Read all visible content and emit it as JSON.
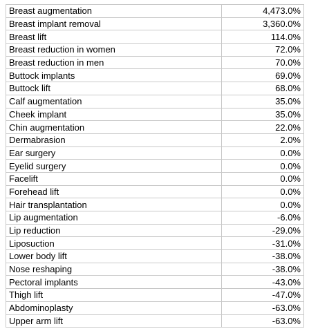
{
  "table": {
    "rows": [
      [
        "Breast augmentation",
        "4,473.0%"
      ],
      [
        "Breast implant removal",
        "3,360.0%"
      ],
      [
        "Breast lift",
        "114.0%"
      ],
      [
        "Breast reduction in women",
        "72.0%"
      ],
      [
        "Breast reduction in men",
        "70.0%"
      ],
      [
        "Buttock implants",
        "69.0%"
      ],
      [
        "Buttock lift",
        "68.0%"
      ],
      [
        "Calf augmentation",
        "35.0%"
      ],
      [
        "Cheek implant",
        "35.0%"
      ],
      [
        "Chin augmentation",
        "22.0%"
      ],
      [
        "Dermabrasion",
        "2.0%"
      ],
      [
        "Ear surgery",
        "0.0%"
      ],
      [
        "Eyelid surgery",
        "0.0%"
      ],
      [
        "Facelift",
        "0.0%"
      ],
      [
        "Forehead lift",
        "0.0%"
      ],
      [
        "Hair transplantation",
        "0.0%"
      ],
      [
        "Lip augmentation",
        "-6.0%"
      ],
      [
        "Lip reduction",
        "-29.0%"
      ],
      [
        "Liposuction",
        "-31.0%"
      ],
      [
        "Lower body lift",
        "-38.0%"
      ],
      [
        "Nose reshaping",
        "-38.0%"
      ],
      [
        "Pectoral implants",
        "-43.0%"
      ],
      [
        "Thigh lift",
        "-47.0%"
      ],
      [
        "Abdominoplasty",
        "-63.0%"
      ],
      [
        "Upper arm lift",
        "-63.0%"
      ]
    ]
  }
}
